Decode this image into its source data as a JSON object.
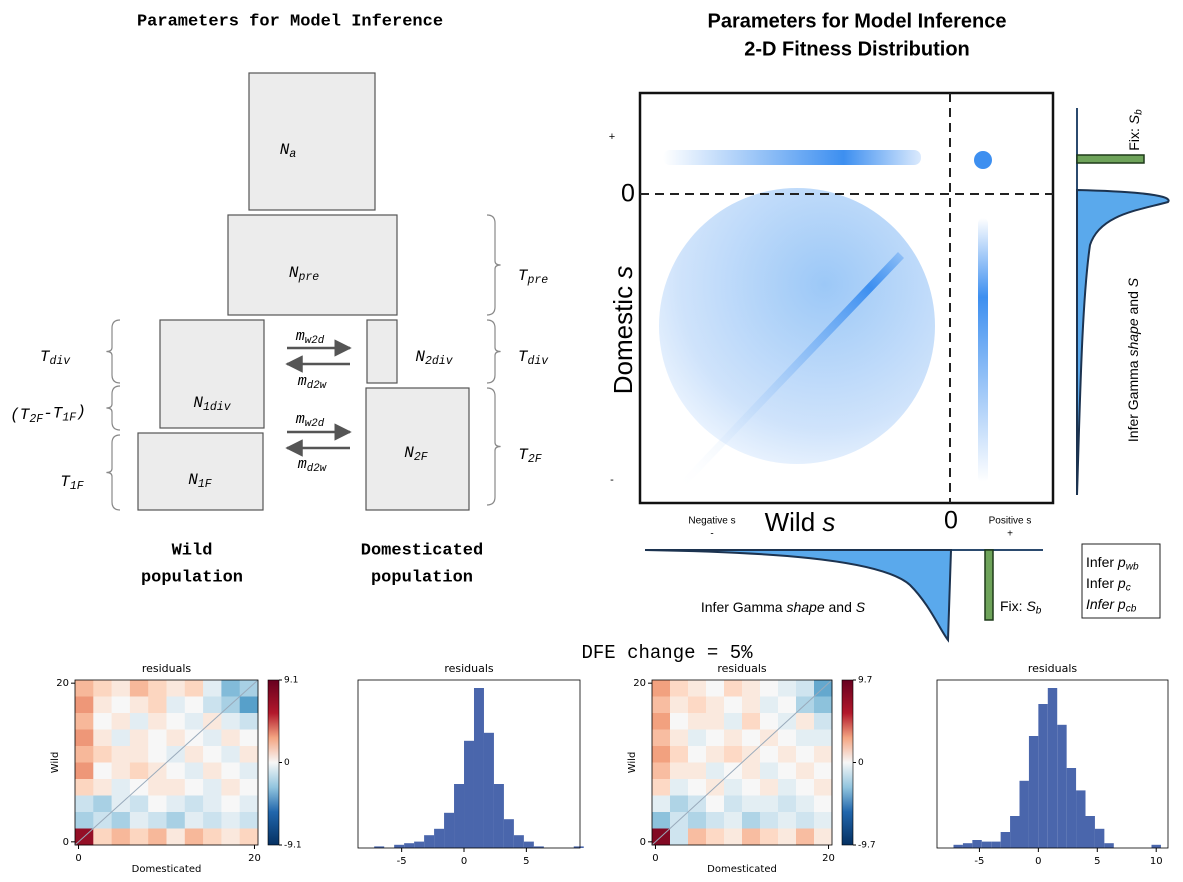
{
  "diagram": {
    "title": "Parameters for Model Inference",
    "nodes": [
      [
        "N",
        {
          "sub": "a"
        }
      ],
      [
        "N",
        {
          "sub": "pre"
        }
      ],
      [
        "N",
        {
          "sub": "1div"
        }
      ],
      [
        "N",
        {
          "sub": "2div"
        }
      ],
      [
        "N",
        {
          "sub": "1F"
        }
      ],
      [
        "N",
        {
          "sub": "2F"
        }
      ]
    ],
    "times": [
      [
        "T",
        {
          "sub": "pre"
        }
      ],
      [
        "T",
        {
          "sub": "div"
        }
      ],
      [
        "T",
        {
          "sub": "2F"
        }
      ],
      [
        "T",
        {
          "sub": "div"
        }
      ],
      [
        "(T",
        {
          "sub": "2F"
        },
        "-T",
        {
          "sub": "1F"
        },
        ")"
      ],
      [
        "T",
        {
          "sub": "1F"
        }
      ]
    ],
    "migration": [
      [
        "m",
        {
          "sub": "w2d"
        }
      ],
      [
        "m",
        {
          "sub": "d2w"
        }
      ],
      [
        "m",
        {
          "sub": "w2d"
        }
      ],
      [
        "m",
        {
          "sub": "d2w"
        }
      ]
    ],
    "populations": [
      [
        "Wild",
        "population"
      ],
      [
        "Domesticated",
        "population"
      ]
    ]
  },
  "fitness": {
    "title": [
      "Parameters for Model Inference",
      "2-D Fitness Distribution"
    ],
    "ylabel": [
      "Domestic ",
      {
        "i": "s"
      }
    ],
    "xlabel": [
      "Wild ",
      {
        "i": "s"
      }
    ],
    "zero_y": "0",
    "zero_x": "0",
    "plus_y": "+",
    "minus_y": "-",
    "negative": "Negative s",
    "negative_sign": "-",
    "positive": "Positive s",
    "positive_sign": "+",
    "fix_right": [
      "Fix: ",
      {
        "isub_base": "S"
      },
      {
        "isub": "b"
      }
    ],
    "fix_bottom": [
      "Fix: ",
      {
        "isub_base": "S"
      },
      {
        "isub": "b"
      }
    ],
    "infer_right": [
      "Infer Gamma ",
      {
        "i": "shape"
      },
      " and ",
      {
        "i": "S"
      }
    ],
    "infer_bottom": [
      "Infer Gamma ",
      {
        "i": "shape"
      },
      " and ",
      {
        "i": "S"
      }
    ],
    "infer_box": [
      [
        "Infer ",
        {
          "i": "p"
        },
        {
          "isub": "wb"
        }
      ],
      [
        "Infer ",
        {
          "i": "p"
        },
        {
          "isub": "c"
        }
      ],
      [
        {
          "i": "Infer p"
        },
        {
          "isub": "cb"
        }
      ]
    ]
  },
  "caption": "DFE change = 5%",
  "chart_data": [
    {
      "type": "heatmap",
      "title": "residuals",
      "xlabel": "Domesticated",
      "ylabel": "Wild",
      "xlim": [
        -0.4,
        20.4
      ],
      "ylim": [
        -0.4,
        20.4
      ],
      "xticks": [
        0,
        20
      ],
      "yticks": [
        0,
        20
      ],
      "clim": [
        -9.1,
        9.1
      ],
      "cticks": [
        9.1,
        0,
        -9.1
      ],
      "values": [
        [
          3,
          2,
          1,
          3,
          2,
          1,
          2,
          -1,
          -4,
          -3
        ],
        [
          4,
          1,
          0,
          1,
          2,
          -1,
          0,
          -2,
          -3,
          -5
        ],
        [
          3,
          0,
          1,
          -1,
          1,
          0,
          -1,
          1,
          -1,
          -2
        ],
        [
          4,
          1,
          -1,
          1,
          0,
          1,
          0,
          -1,
          1,
          0
        ],
        [
          3,
          2,
          1,
          1,
          0,
          -1,
          1,
          0,
          -1,
          1
        ],
        [
          4,
          0,
          1,
          2,
          1,
          0,
          -1,
          1,
          0,
          -1
        ],
        [
          2,
          1,
          -1,
          0,
          1,
          1,
          0,
          -1,
          1,
          0
        ],
        [
          -2,
          -3,
          -1,
          -2,
          0,
          -1,
          -2,
          -1,
          0,
          -1
        ],
        [
          -3,
          -2,
          -3,
          -1,
          -2,
          -3,
          -1,
          -2,
          -1,
          -2
        ],
        [
          8,
          2,
          3,
          2,
          3,
          1,
          3,
          2,
          1,
          2
        ]
      ]
    },
    {
      "type": "histogram",
      "title": "residuals",
      "color": "#4a66ac",
      "xlim": [
        -8.5,
        9.3
      ],
      "xticks": [
        -5,
        0,
        5
      ],
      "ylim": [
        0,
        105
      ],
      "bins": [
        -7.2,
        -6.4,
        -5.6,
        -4.8,
        -4.0,
        -3.2,
        -2.4,
        -1.6,
        -0.8,
        0,
        0.8,
        1.6,
        2.4,
        3.2,
        4.0,
        4.8,
        5.6,
        6.4,
        7.2,
        8.0,
        8.8,
        9.6
      ],
      "values": [
        1,
        0,
        2,
        3,
        4,
        8,
        12,
        22,
        40,
        67,
        100,
        72,
        40,
        18,
        8,
        4,
        1,
        0,
        0,
        0,
        1
      ]
    },
    {
      "type": "heatmap",
      "title": "residuals",
      "xlabel": "Domesticated",
      "ylabel": "Wild",
      "xlim": [
        -0.4,
        20.4
      ],
      "ylim": [
        -0.4,
        20.4
      ],
      "xticks": [
        0,
        20
      ],
      "yticks": [
        0,
        20
      ],
      "clim": [
        -9.7,
        9.7
      ],
      "cticks": [
        9.7,
        0,
        -9.7
      ],
      "values": [
        [
          4,
          2,
          1,
          0,
          2,
          1,
          0,
          -1,
          -2,
          -5
        ],
        [
          3,
          1,
          2,
          1,
          0,
          1,
          -1,
          0,
          -3,
          -4
        ],
        [
          4,
          0,
          1,
          1,
          -1,
          2,
          0,
          -1,
          1,
          -2
        ],
        [
          3,
          1,
          -1,
          0,
          1,
          0,
          1,
          0,
          -1,
          -1
        ],
        [
          4,
          2,
          0,
          1,
          2,
          1,
          0,
          1,
          0,
          1
        ],
        [
          3,
          1,
          1,
          -1,
          0,
          1,
          -1,
          0,
          1,
          0
        ],
        [
          2,
          -1,
          0,
          1,
          -1,
          0,
          1,
          -1,
          0,
          1
        ],
        [
          -1,
          -3,
          -2,
          0,
          -2,
          -1,
          -1,
          -2,
          -1,
          0
        ],
        [
          -4,
          -2,
          -3,
          -2,
          -1,
          -3,
          -2,
          -1,
          -2,
          -1
        ],
        [
          9,
          -2,
          3,
          2,
          1,
          3,
          2,
          1,
          3,
          1
        ]
      ]
    },
    {
      "type": "histogram",
      "title": "residuals",
      "color": "#4a66ac",
      "xlim": [
        -8.6,
        11
      ],
      "xticks": [
        -5,
        0,
        5,
        10
      ],
      "ylim": [
        0,
        105
      ],
      "bins": [
        -7.2,
        -6.4,
        -5.6,
        -4.8,
        -4.0,
        -3.2,
        -2.4,
        -1.6,
        -0.8,
        0,
        0.8,
        1.6,
        2.4,
        3.2,
        4.0,
        4.8,
        5.6,
        6.4,
        7.2,
        8.0,
        8.8,
        9.6,
        10.4
      ],
      "values": [
        2,
        3,
        5,
        4,
        4,
        10,
        20,
        42,
        70,
        90,
        100,
        77,
        50,
        36,
        20,
        12,
        3,
        0,
        0,
        0,
        0,
        2
      ]
    }
  ]
}
